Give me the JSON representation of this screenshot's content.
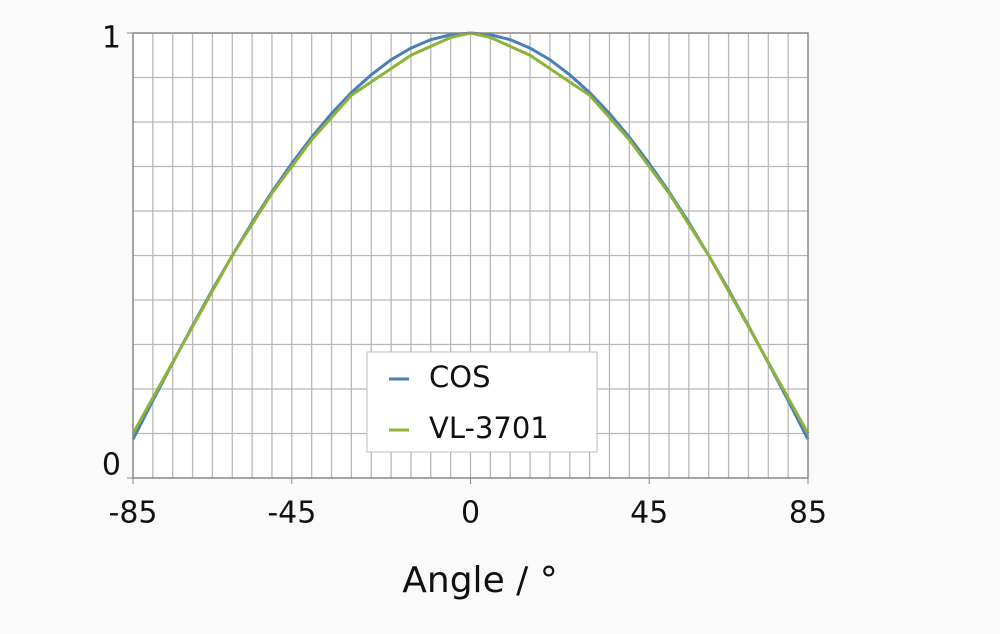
{
  "chart_data": {
    "type": "line",
    "x": [
      -85,
      -80,
      -75,
      -70,
      -65,
      -60,
      -55,
      -50,
      -45,
      -40,
      -35,
      -30,
      -25,
      -20,
      -15,
      -10,
      -5,
      0,
      5,
      10,
      15,
      20,
      25,
      30,
      35,
      40,
      45,
      50,
      55,
      60,
      65,
      70,
      75,
      80,
      85
    ],
    "series": [
      {
        "name": "COS",
        "color": "#4a7ebb",
        "values": [
          0.087,
          0.174,
          0.259,
          0.342,
          0.423,
          0.5,
          0.574,
          0.643,
          0.707,
          0.766,
          0.819,
          0.866,
          0.906,
          0.94,
          0.966,
          0.985,
          0.996,
          1,
          0.996,
          0.985,
          0.966,
          0.94,
          0.906,
          0.866,
          0.819,
          0.766,
          0.707,
          0.643,
          0.574,
          0.5,
          0.423,
          0.342,
          0.259,
          0.174,
          0.087
        ]
      },
      {
        "name": "VL-3701",
        "color": "#8db33a",
        "values": [
          0.1,
          0.18,
          0.26,
          0.34,
          0.42,
          0.5,
          0.57,
          0.64,
          0.7,
          0.76,
          0.81,
          0.86,
          0.89,
          0.92,
          0.95,
          0.97,
          0.99,
          1,
          0.99,
          0.97,
          0.95,
          0.92,
          0.89,
          0.86,
          0.81,
          0.76,
          0.7,
          0.64,
          0.57,
          0.5,
          0.42,
          0.34,
          0.26,
          0.18,
          0.1
        ]
      }
    ],
    "xlabel": "Angle / °",
    "xlim": [
      -85,
      85
    ],
    "xticks": [
      -85,
      -45,
      0,
      45,
      85
    ],
    "ylim": [
      0,
      1
    ],
    "yticks": [
      0,
      1
    ],
    "grid": true,
    "xgrid_step": 5,
    "ygrid_step": 0.1,
    "legend": "lower center"
  }
}
